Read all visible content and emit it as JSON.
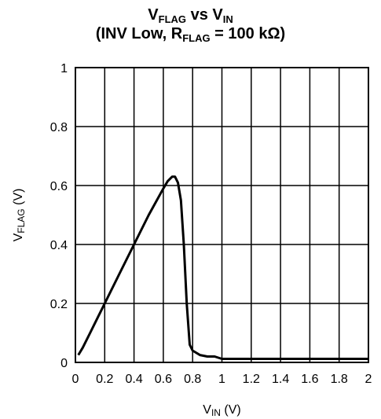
{
  "chart_data": {
    "type": "line",
    "title": {
      "line1": {
        "main_v1": "V",
        "sub_v1": "FLAG",
        "mid": " vs V",
        "sub_v2": "IN"
      },
      "line2": {
        "pre": "(INV Low, R",
        "sub": "FLAG",
        "post": " = 100 kΩ)"
      }
    },
    "xlabel": {
      "main": "V",
      "sub": "IN",
      "unit": " (V)"
    },
    "ylabel": {
      "main": "V",
      "sub": "FLAG",
      "unit": " (V)"
    },
    "xlim": [
      0,
      2
    ],
    "ylim": [
      0,
      1
    ],
    "x_ticks": [
      "0",
      "0.2",
      "0.4",
      "0.6",
      "0.8",
      "1",
      "1.2",
      "1.4",
      "1.6",
      "1.8",
      "2"
    ],
    "y_ticks": [
      "0",
      "0.2",
      "0.4",
      "0.6",
      "0.8",
      "1"
    ],
    "grid": true,
    "series": [
      {
        "color": "#000000",
        "x": [
          0.02,
          0.05,
          0.1,
          0.2,
          0.3,
          0.4,
          0.5,
          0.6,
          0.63,
          0.66,
          0.68,
          0.7,
          0.72,
          0.74,
          0.76,
          0.78,
          0.8,
          0.85,
          0.9,
          0.95,
          1.0,
          1.5,
          2.0
        ],
        "y": [
          0.025,
          0.05,
          0.1,
          0.2,
          0.3,
          0.4,
          0.5,
          0.59,
          0.615,
          0.63,
          0.63,
          0.61,
          0.55,
          0.4,
          0.2,
          0.06,
          0.04,
          0.025,
          0.02,
          0.02,
          0.012,
          0.012,
          0.012
        ]
      }
    ]
  }
}
